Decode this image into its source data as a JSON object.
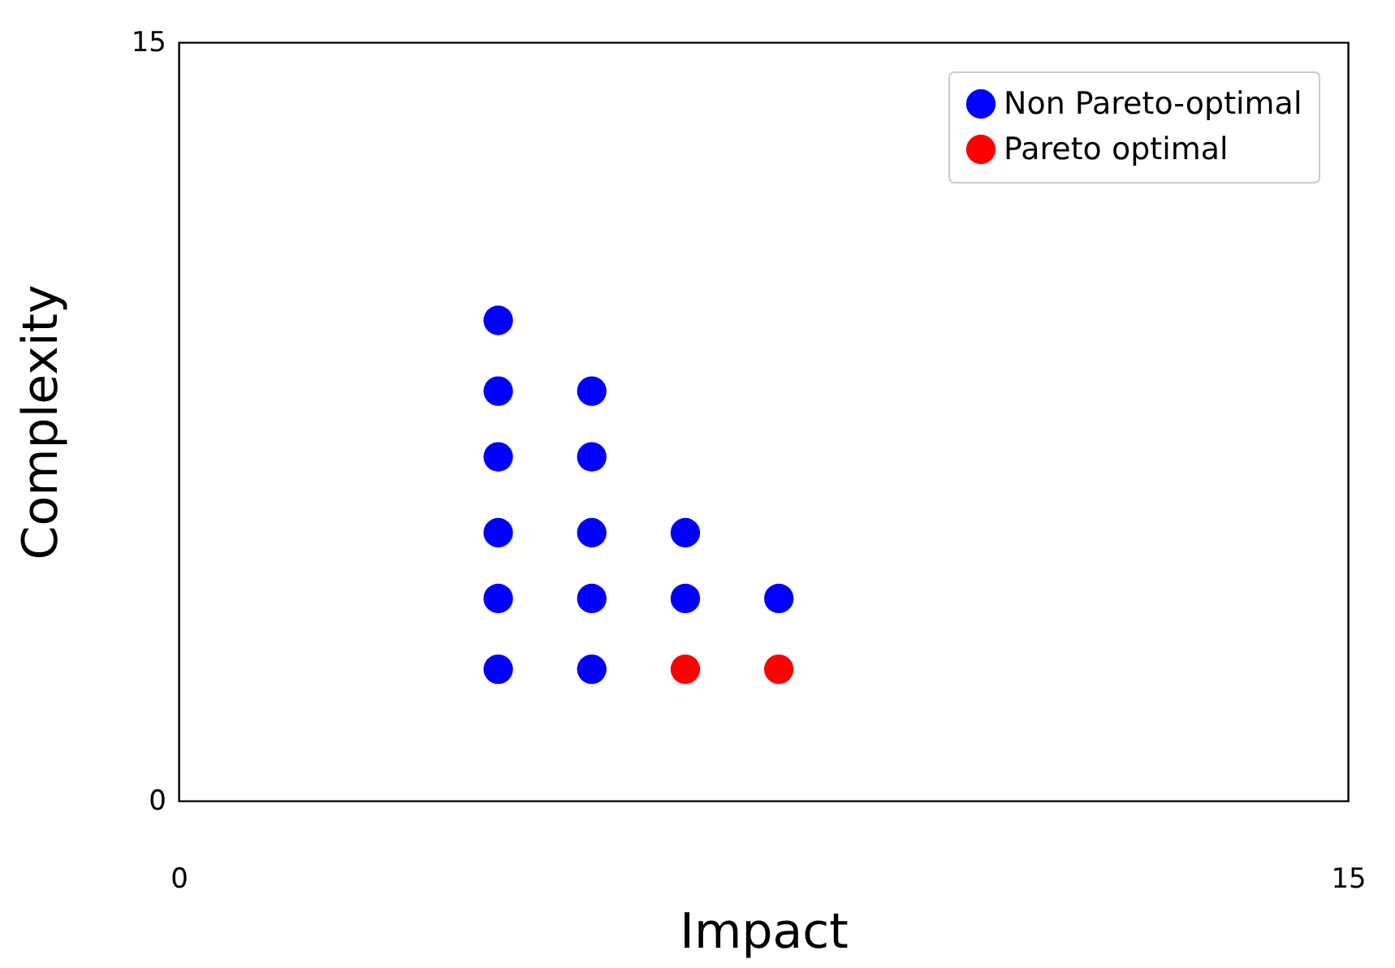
{
  "chart_data": {
    "type": "scatter",
    "xlabel": "Impact",
    "ylabel": "Complexity",
    "xlim": [
      0,
      15
    ],
    "ylim": [
      0,
      15
    ],
    "xticks": [
      0,
      15
    ],
    "yticks": [
      0,
      15
    ],
    "grid": false,
    "legend": "top right",
    "marker": "circle",
    "series": [
      {
        "name": "Non Pareto-optimal",
        "color": "#0000ff",
        "x": [
          4.1,
          4.1,
          4.1,
          4.1,
          4.1,
          4.1,
          5.3,
          5.3,
          5.3,
          5.3,
          5.3,
          6.5,
          6.5,
          7.7
        ],
        "values": [
          2.6,
          4.0,
          5.3,
          6.8,
          8.1,
          9.5,
          2.6,
          4.0,
          5.3,
          6.8,
          8.1,
          4.0,
          5.3,
          4.0
        ]
      },
      {
        "name": "Pareto optimal",
        "color": "#ff0000",
        "x": [
          6.5,
          7.7
        ],
        "values": [
          2.6,
          2.6
        ]
      }
    ]
  }
}
